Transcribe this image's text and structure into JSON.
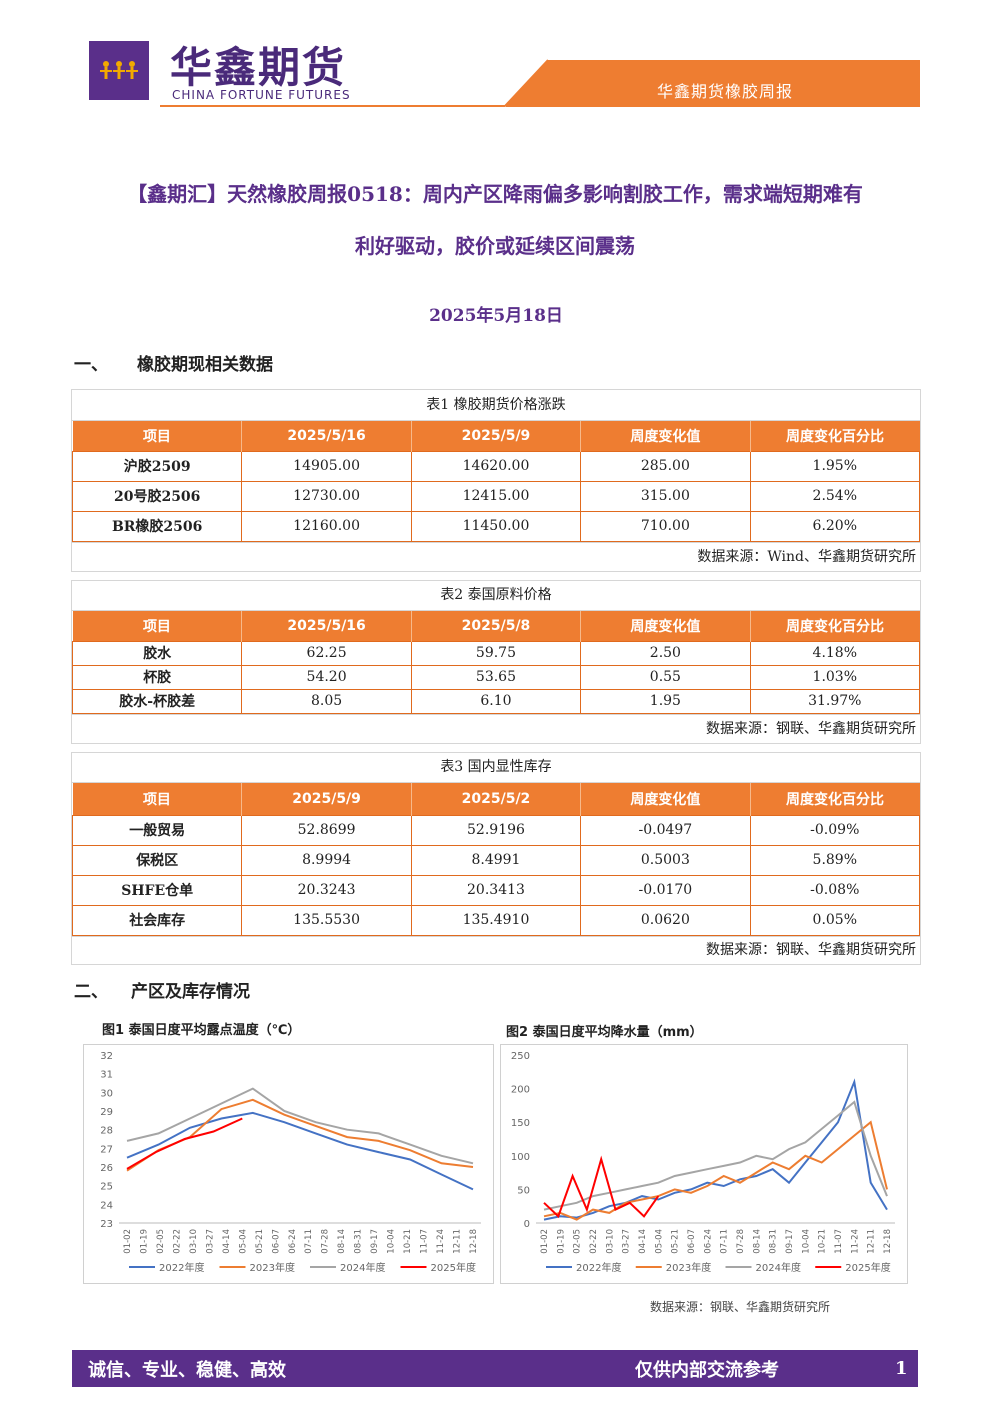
{
  "header": {
    "logo_cn": "华鑫期货",
    "logo_en": "CHINA FORTUNE FUTURES",
    "report_name": "华鑫期货橡胶周报",
    "brand_purple": "#5a2f8a",
    "accent_orange": "#ee7d31"
  },
  "title": {
    "line1": "【鑫期汇】天然橡胶周报0518：周内产区降雨偏多影响割胶工作，需求端短期难有",
    "line2": "利好驱动，胶价或延续区间震荡"
  },
  "date": "2025年5月18日",
  "section1": {
    "num": "一、",
    "label": "橡胶期现相关数据"
  },
  "section2": {
    "num": "二、",
    "label": "产区及库存情况"
  },
  "table1": {
    "caption": "表1 橡胶期货价格涨跌",
    "headers": [
      "项目",
      "2025/5/16",
      "2025/5/9",
      "周度变化值",
      "周度变化百分比"
    ],
    "rows": [
      [
        "沪胶2509",
        "14905.00",
        "14620.00",
        "285.00",
        "1.95%"
      ],
      [
        "20号胶2506",
        "12730.00",
        "12415.00",
        "315.00",
        "2.54%"
      ],
      [
        "BR橡胶2506",
        "12160.00",
        "11450.00",
        "710.00",
        "6.20%"
      ]
    ],
    "source": "数据来源：Wind、华鑫期货研究所"
  },
  "table2": {
    "caption": "表2 泰国原料价格",
    "headers": [
      "项目",
      "2025/5/16",
      "2025/5/8",
      "周度变化值",
      "周度变化百分比"
    ],
    "rows": [
      [
        "胶水",
        "62.25",
        "59.75",
        "2.50",
        "4.18%"
      ],
      [
        "杯胶",
        "54.20",
        "53.65",
        "0.55",
        "1.03%"
      ],
      [
        "胶水-杯胶差",
        "8.05",
        "6.10",
        "1.95",
        "31.97%"
      ]
    ],
    "source": "数据来源：钢联、华鑫期货研究所"
  },
  "table3": {
    "caption": "表3 国内显性库存",
    "headers": [
      "项目",
      "2025/5/9",
      "2025/5/2",
      "周度变化值",
      "周度变化百分比"
    ],
    "rows": [
      [
        "一般贸易",
        "52.8699",
        "52.9196",
        "-0.0497",
        "-0.09%"
      ],
      [
        "保税区",
        "8.9994",
        "8.4991",
        "0.5003",
        "5.89%"
      ],
      [
        "SHFE仓单",
        "20.3243",
        "20.3413",
        "-0.0170",
        "-0.08%"
      ],
      [
        "社会库存",
        "135.5530",
        "135.4910",
        "0.0620",
        "0.05%"
      ]
    ],
    "source": "数据来源：钢联、华鑫期货研究所"
  },
  "chart_data": [
    {
      "type": "line",
      "title": "图1 泰国日度平均露点温度（℃）",
      "ylim": [
        23,
        32
      ],
      "yticks": [
        "32",
        "31",
        "30",
        "29",
        "28",
        "27",
        "26",
        "25",
        "24",
        "23"
      ],
      "xticks": [
        "01-02",
        "01-19",
        "02-05",
        "02-22",
        "03-10",
        "03-27",
        "04-14",
        "05-04",
        "05-21",
        "06-07",
        "06-24",
        "07-11",
        "07-28",
        "08-14",
        "08-31",
        "09-17",
        "10-04",
        "10-21",
        "11-07",
        "11-24",
        "12-11",
        "12-18"
      ],
      "series": [
        {
          "name": "2022年度",
          "color": "#4472c4",
          "values": [
            26.5,
            27.2,
            28.1,
            28.6,
            28.9,
            28.4,
            27.8,
            27.2,
            26.8,
            26.4,
            25.6,
            24.8
          ]
        },
        {
          "name": "2023年度",
          "color": "#ed7d31",
          "values": [
            25.8,
            26.9,
            27.6,
            29.1,
            29.6,
            28.8,
            28.2,
            27.6,
            27.4,
            26.9,
            26.2,
            26.0
          ]
        },
        {
          "name": "2024年度",
          "color": "#a5a5a5",
          "values": [
            27.4,
            27.8,
            28.6,
            29.4,
            30.2,
            29.0,
            28.4,
            28.0,
            27.8,
            27.2,
            26.6,
            26.2
          ]
        },
        {
          "name": "2025年度",
          "color": "#ff0000",
          "values": [
            25.9,
            26.8,
            27.5,
            27.9,
            28.6
          ]
        }
      ],
      "grid": false,
      "legend": "bottom"
    },
    {
      "type": "line",
      "title": "图2 泰国日度平均降水量（mm）",
      "ylim": [
        0,
        250
      ],
      "yticks": [
        "250",
        "200",
        "150",
        "100",
        "50",
        "0"
      ],
      "xticks": [
        "01-02",
        "01-19",
        "02-05",
        "02-22",
        "03-10",
        "03-27",
        "04-14",
        "05-04",
        "05-21",
        "06-07",
        "06-24",
        "07-11",
        "07-28",
        "08-14",
        "08-31",
        "09-17",
        "10-04",
        "10-21",
        "11-07",
        "11-24",
        "12-11",
        "12-18"
      ],
      "series": [
        {
          "name": "2022年度",
          "color": "#4472c4",
          "values": [
            5,
            10,
            8,
            15,
            25,
            30,
            40,
            35,
            45,
            50,
            60,
            55,
            65,
            70,
            80,
            60,
            90,
            120,
            150,
            210,
            60,
            20
          ]
        },
        {
          "name": "2023年度",
          "color": "#ed7d31",
          "values": [
            10,
            15,
            5,
            20,
            15,
            30,
            35,
            40,
            50,
            45,
            55,
            70,
            60,
            75,
            90,
            80,
            100,
            90,
            110,
            130,
            150,
            50
          ]
        },
        {
          "name": "2024年度",
          "color": "#a5a5a5",
          "values": [
            20,
            25,
            30,
            40,
            45,
            50,
            55,
            60,
            70,
            75,
            80,
            85,
            90,
            100,
            95,
            110,
            120,
            140,
            160,
            180,
            100,
            40
          ]
        },
        {
          "name": "2025年度",
          "color": "#ff0000",
          "values": [
            30,
            10,
            70,
            20,
            95,
            20,
            30,
            10,
            40
          ]
        }
      ],
      "grid": false,
      "legend": "bottom"
    }
  ],
  "figure_source": "数据来源：钢联、华鑫期货研究所",
  "footer": {
    "motto": "诚信、专业、稳健、高效",
    "notice": "仅供内部交流参考",
    "page": "1"
  }
}
